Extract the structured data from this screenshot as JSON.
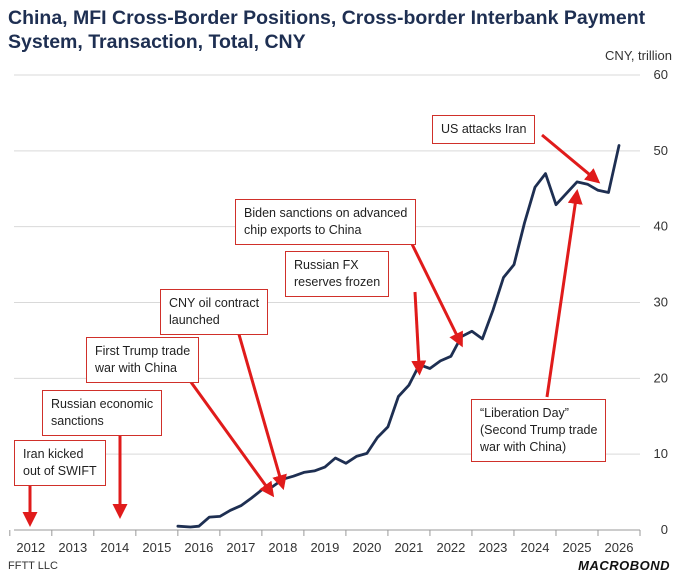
{
  "title": "China, MFI Cross-Border Positions, Cross-border Interbank Payment System, Transaction, Total, CNY",
  "footer": {
    "source": "FFTT LLC",
    "logo": "MACROBOND"
  },
  "colors": {
    "line": "#1e2f52",
    "arrow": "#e01b1b",
    "grid": "#d9d9d9"
  },
  "chart_data": {
    "type": "line",
    "title": "China, MFI Cross-Border Positions, Cross-border Interbank Payment System, Transaction, Total, CNY",
    "ylabel": "CNY, trillion",
    "ylim": [
      0,
      60
    ],
    "yticks": [
      0,
      10,
      20,
      30,
      40,
      50,
      60
    ],
    "xlim": [
      2011.6,
      2026.5
    ],
    "xticks": [
      "2012",
      "2013",
      "2014",
      "2015",
      "2016",
      "2017",
      "2018",
      "2019",
      "2020",
      "2021",
      "2022",
      "2023",
      "2024",
      "2025",
      "2026"
    ],
    "grid": "horizontal",
    "series": [
      {
        "x": [
          2015.5,
          2015.8,
          2016.0,
          2016.25,
          2016.5,
          2016.75,
          2017.0,
          2017.25,
          2017.5,
          2017.75,
          2018.0,
          2018.25,
          2018.5,
          2018.75,
          2019.0,
          2019.25,
          2019.5,
          2019.75,
          2020.0,
          2020.25,
          2020.5,
          2020.75,
          2021.0,
          2021.25,
          2021.5,
          2021.75,
          2022.0,
          2022.25,
          2022.5,
          2022.75,
          2023.0,
          2023.25,
          2023.5,
          2023.75,
          2024.0,
          2024.25,
          2024.5,
          2024.75,
          2025.0,
          2025.25,
          2025.5,
          2025.75,
          2026.0
        ],
        "y": [
          0.5,
          0.4,
          0.5,
          1.7,
          1.8,
          2.6,
          3.2,
          4.2,
          5.3,
          5.7,
          6.7,
          7.1,
          7.6,
          7.8,
          8.3,
          9.5,
          8.8,
          9.7,
          10.1,
          12.2,
          13.6,
          17.6,
          19.1,
          21.8,
          21.3,
          22.3,
          22.9,
          25.5,
          26.2,
          25.2,
          29.0,
          33.3,
          35.0,
          40.5,
          45.2,
          47.0,
          42.9,
          44.4,
          45.9,
          45.6,
          44.8,
          44.5,
          50.7
        ]
      }
    ],
    "annotations": [
      {
        "text": "Iran kicked out of SWIFT",
        "x": 2012.0,
        "y": 0
      },
      {
        "text": "Russian economic sanctions",
        "x": 2014.0,
        "y": 0
      },
      {
        "text": "First Trump trade war with China",
        "x": 2017.75,
        "y": 5.7
      },
      {
        "text": "CNY oil contract launched",
        "x": 2018.0,
        "y": 6.7
      },
      {
        "text": "Russian FX reserves frozen",
        "x": 2021.25,
        "y": 21.8
      },
      {
        "text": "Biden sanctions on advanced chip exports to China",
        "x": 2022.25,
        "y": 25.5
      },
      {
        "text": "US attacks Iran",
        "x": 2025.5,
        "y": 47
      },
      {
        "text": "“Liberation Day” (Second Trump trade war with China)",
        "x": 2025.0,
        "y": 45.9
      }
    ]
  },
  "annotation_lines": {
    "iran_swift": [
      "Iran kicked",
      "out of SWIFT"
    ],
    "russia_sanctions": [
      "Russian economic",
      "sanctions"
    ],
    "trump1": [
      "First Trump trade",
      "war with China"
    ],
    "cny_oil": [
      "CNY oil contract",
      "launched"
    ],
    "russia_fx": [
      "Russian FX",
      "reserves frozen"
    ],
    "biden": [
      "Biden sanctions on advanced",
      "chip exports to China"
    ],
    "us_iran": [
      "US attacks Iran"
    ],
    "liberation": [
      "“Liberation Day”",
      "(Second Trump trade",
      "war with China)"
    ]
  }
}
